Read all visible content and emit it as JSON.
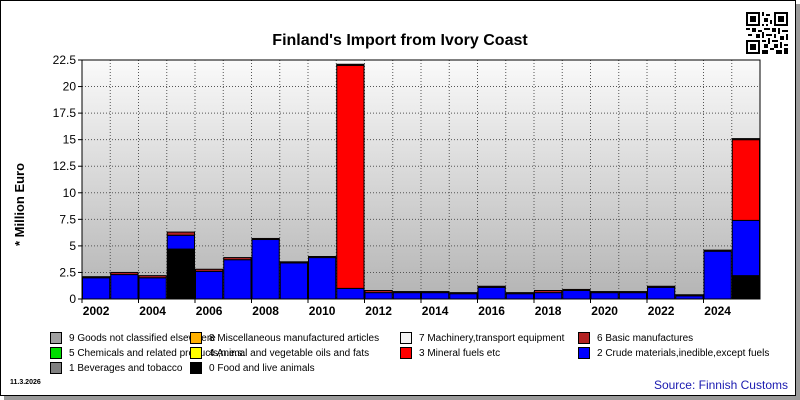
{
  "header": {
    "title": "Finland's Import from Ivory Coast"
  },
  "footer": {
    "date": "11.3.2026",
    "source": "Source: Finnish Customs"
  },
  "chart_data": {
    "type": "bar",
    "stacked": true,
    "title": "Finland's Import from Ivory Coast",
    "xlabel": "",
    "ylabel": "* Million Euro",
    "ylim": [
      0,
      22.5
    ],
    "yticks": [
      0,
      2.5,
      5,
      7.5,
      10,
      12.5,
      15,
      17.5,
      20,
      22.5
    ],
    "ytick_labels": [
      "0",
      "2.5",
      "5",
      "7.5",
      "10",
      "12.5",
      "15",
      "17.5",
      "20",
      "22.5"
    ],
    "categories": [
      "2002",
      "2003",
      "2004",
      "2005",
      "2006",
      "2007",
      "2008",
      "2009",
      "2010",
      "2011",
      "2012",
      "2013",
      "2014",
      "2015",
      "2016",
      "2017",
      "2018",
      "2019",
      "2020",
      "2021",
      "2022",
      "2023",
      "2024",
      "2025"
    ],
    "xtick_labels": [
      "2002",
      "2004",
      "2006",
      "2008",
      "2010",
      "2012",
      "2014",
      "2016",
      "2018",
      "2020",
      "2022",
      "2024"
    ],
    "grid": true,
    "legend_position": "bottom",
    "series": [
      {
        "name": "0 Food and live animals",
        "color": "#000000",
        "values": [
          0,
          0,
          0,
          4.7,
          0,
          0,
          0,
          0,
          0,
          0,
          0,
          0,
          0,
          0,
          0,
          0,
          0,
          0,
          0,
          0,
          0,
          0,
          0,
          2.2
        ]
      },
      {
        "name": "2 Crude materials,inedible,except fuels",
        "color": "#0000ff",
        "values": [
          2.0,
          2.3,
          2.0,
          1.3,
          2.6,
          3.7,
          5.6,
          3.4,
          3.9,
          1.0,
          0.6,
          0.6,
          0.6,
          0.5,
          1.1,
          0.5,
          0.6,
          0.8,
          0.6,
          0.6,
          1.1,
          0.3,
          4.5,
          5.2
        ]
      },
      {
        "name": "3 Mineral fuels etc",
        "color": "#ff0000",
        "values": [
          0,
          0,
          0,
          0,
          0,
          0,
          0,
          0,
          0,
          21.0,
          0,
          0,
          0,
          0,
          0,
          0,
          0,
          0,
          0,
          0,
          0,
          0,
          0,
          7.6
        ]
      },
      {
        "name": "6 Basic manufactures",
        "color": "#b22222",
        "values": [
          0.1,
          0.2,
          0.2,
          0.3,
          0.2,
          0.2,
          0.1,
          0.1,
          0.1,
          0.1,
          0.2,
          0.1,
          0.1,
          0.1,
          0.1,
          0.1,
          0.2,
          0.1,
          0.1,
          0.1,
          0.1,
          0.1,
          0.1,
          0.1
        ]
      }
    ],
    "legend": [
      {
        "name": "9 Goods not classified elsewhere",
        "color": "#a0a0a0"
      },
      {
        "name": "8 Miscellaneous manufactured articles",
        "color": "#ffb000"
      },
      {
        "name": "7 Machinery,transport equipment",
        "color": "#f4f4f4"
      },
      {
        "name": "6 Basic manufactures",
        "color": "#b22222"
      },
      {
        "name": "5 Chemicals and related products,n.e.s.",
        "color": "#00dd00"
      },
      {
        "name": "4 Animal and vegetable oils and fats",
        "color": "#ffff00"
      },
      {
        "name": "3 Mineral fuels etc",
        "color": "#ff0000"
      },
      {
        "name": "2 Crude materials,inedible,except fuels",
        "color": "#0000ff"
      },
      {
        "name": "1 Beverages and tobacco",
        "color": "#808080"
      },
      {
        "name": "0 Food and live animals",
        "color": "#000000"
      }
    ]
  }
}
